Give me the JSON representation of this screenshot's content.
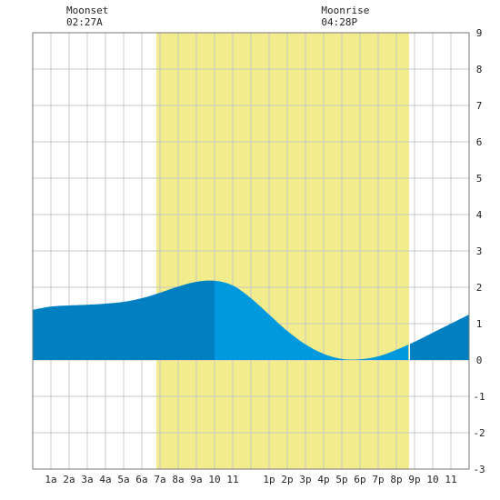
{
  "chart_data": {
    "type": "area",
    "title": "",
    "xlabel": "",
    "ylabel": "",
    "x_tick_labels": [
      "1a",
      "2a",
      "3a",
      "4a",
      "5a",
      "6a",
      "7a",
      "8a",
      "9a",
      "10",
      "11",
      "1p",
      "2p",
      "3p",
      "4p",
      "5p",
      "6p",
      "7p",
      "8p",
      "9p",
      "10",
      "11"
    ],
    "x_tick_hours": [
      1,
      2,
      3,
      4,
      5,
      6,
      7,
      8,
      9,
      10,
      11,
      13,
      14,
      15,
      16,
      17,
      18,
      19,
      20,
      21,
      22,
      23
    ],
    "xlim_hours": [
      0,
      24
    ],
    "ylim": [
      -3,
      9
    ],
    "y_ticks": [
      -3,
      -2,
      -1,
      0,
      1,
      2,
      3,
      4,
      5,
      6,
      7,
      8,
      9
    ],
    "grid": true,
    "daylight_hours": [
      6.8,
      20.7
    ],
    "split_hour": 10.0,
    "series": [
      {
        "x": [
          0,
          1,
          2,
          3,
          4,
          5,
          6,
          7,
          8,
          9,
          10,
          11,
          12,
          13,
          14,
          15,
          16,
          17,
          18,
          19,
          20,
          21,
          22,
          23,
          24
        ],
        "values": [
          1.38,
          1.47,
          1.5,
          1.52,
          1.55,
          1.6,
          1.7,
          1.85,
          2.02,
          2.15,
          2.18,
          2.05,
          1.7,
          1.25,
          0.8,
          0.43,
          0.17,
          0.03,
          0.02,
          0.1,
          0.28,
          0.5,
          0.75,
          1.0,
          1.25
        ]
      }
    ],
    "annotations": [
      {
        "label": "Moonset",
        "time": "02:27A",
        "hour": 2.45
      },
      {
        "label": "Moonrise",
        "time": "04:28P",
        "hour": 16.47
      }
    ],
    "colors": {
      "daylight": "#f2ec8c",
      "tide_night": "#0080c0",
      "tide_day": "#0099dd",
      "grid": "#c8c8c8",
      "frame": "#777777"
    }
  }
}
